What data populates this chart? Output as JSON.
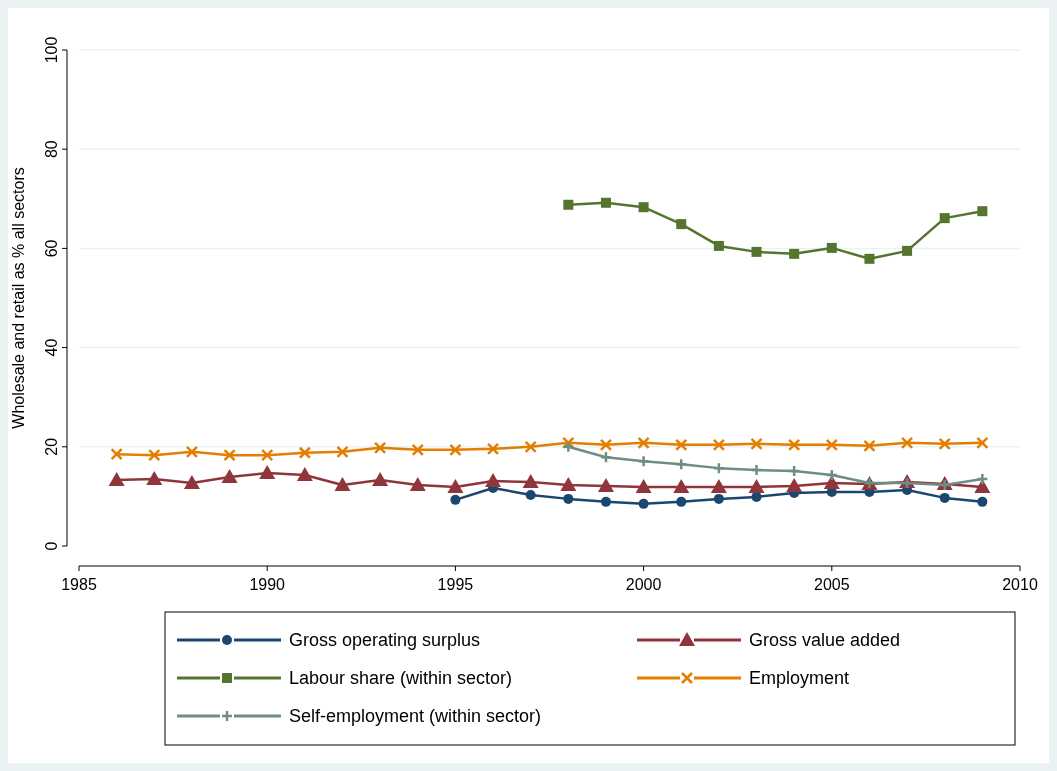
{
  "chart_data": {
    "type": "line",
    "ylabel": "Wholesale and retail as % all sectors",
    "xlim": [
      1985,
      2010
    ],
    "xticks": [
      1985,
      1990,
      1995,
      2000,
      2005,
      2010
    ],
    "ylim": [
      0,
      100
    ],
    "yticks": [
      0,
      20,
      40,
      60,
      80,
      100
    ],
    "grid": "y",
    "legend": "bottom",
    "series": [
      {
        "name": "Gross operating surplus",
        "color": "#1a476f",
        "marker": "circle",
        "x": [
          1995,
          1996,
          1997,
          1998,
          1999,
          2000,
          2001,
          2002,
          2003,
          2004,
          2005,
          2006,
          2007,
          2008,
          2009
        ],
        "values": [
          9.3,
          11.7,
          10.3,
          9.5,
          8.9,
          8.5,
          8.9,
          9.5,
          9.9,
          10.7,
          10.9,
          10.9,
          11.3,
          9.7,
          8.9
        ]
      },
      {
        "name": "Gross value added",
        "color": "#90353b",
        "marker": "triangle",
        "x": [
          1986,
          1987,
          1988,
          1989,
          1990,
          1991,
          1992,
          1993,
          1994,
          1995,
          1996,
          1997,
          1998,
          1999,
          2000,
          2001,
          2002,
          2003,
          2004,
          2005,
          2006,
          2007,
          2008,
          2009
        ],
        "values": [
          13.3,
          13.5,
          12.7,
          13.9,
          14.7,
          14.3,
          12.3,
          13.3,
          12.3,
          11.9,
          13.1,
          12.9,
          12.3,
          12.1,
          11.9,
          11.9,
          11.9,
          11.9,
          12.1,
          12.7,
          12.5,
          12.9,
          12.5,
          11.9
        ]
      },
      {
        "name": "Labour share (within sector)",
        "color": "#55752f",
        "marker": "square",
        "x": [
          1998,
          1999,
          2000,
          2001,
          2002,
          2003,
          2004,
          2005,
          2006,
          2007,
          2008,
          2009
        ],
        "values": [
          68.8,
          69.2,
          68.3,
          64.9,
          60.5,
          59.3,
          58.9,
          60.1,
          57.9,
          59.5,
          66.1,
          67.5
        ]
      },
      {
        "name": "Employment",
        "color": "#e37e00",
        "marker": "cross",
        "x": [
          1986,
          1987,
          1988,
          1989,
          1990,
          1991,
          1992,
          1993,
          1994,
          1995,
          1996,
          1997,
          1998,
          1999,
          2000,
          2001,
          2002,
          2003,
          2004,
          2005,
          2006,
          2007,
          2008,
          2009
        ],
        "values": [
          18.5,
          18.3,
          19.0,
          18.3,
          18.3,
          18.8,
          19.0,
          19.8,
          19.4,
          19.4,
          19.6,
          20.0,
          20.8,
          20.4,
          20.8,
          20.4,
          20.4,
          20.6,
          20.4,
          20.4,
          20.2,
          20.8,
          20.6,
          20.8
        ]
      },
      {
        "name": "Self-employment (within sector)",
        "color": "#6e8e84",
        "marker": "plus",
        "x": [
          1998,
          1999,
          2000,
          2001,
          2002,
          2003,
          2004,
          2005,
          2006,
          2007,
          2008,
          2009
        ],
        "values": [
          20.0,
          17.9,
          17.1,
          16.5,
          15.7,
          15.3,
          15.1,
          14.3,
          12.7,
          12.7,
          12.3,
          13.5
        ]
      }
    ]
  }
}
